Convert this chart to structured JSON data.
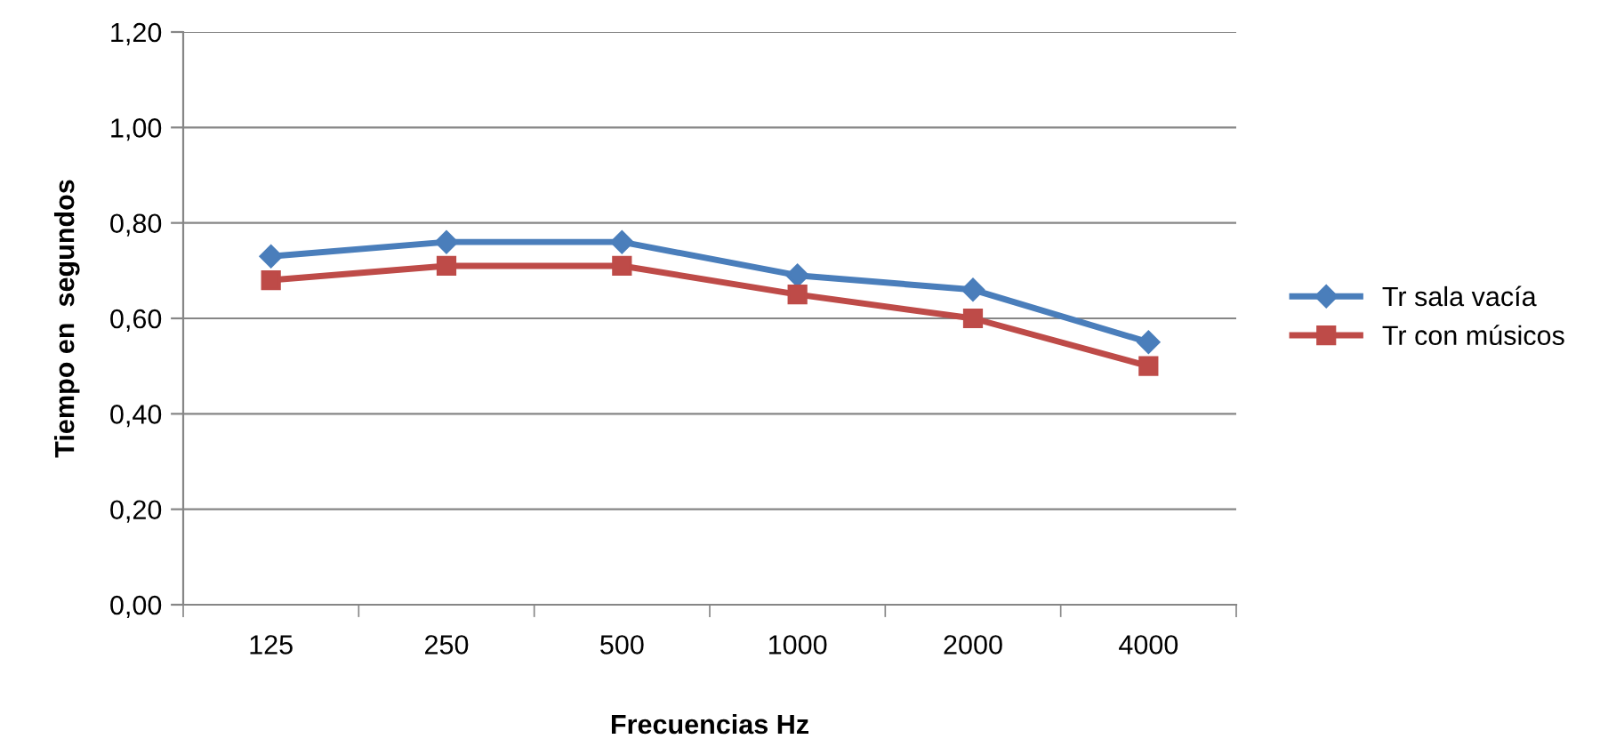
{
  "chart_data": {
    "type": "line",
    "xlabel": "Frecuencias Hz",
    "ylabel": "Tiempo en  segundos",
    "categories": [
      "125",
      "250",
      "500",
      "1000",
      "2000",
      "4000"
    ],
    "series": [
      {
        "name": "Tr sala vacía",
        "color": "#4a7ebb",
        "marker": "diamond",
        "values": [
          0.73,
          0.76,
          0.76,
          0.69,
          0.66,
          0.55
        ]
      },
      {
        "name": "Tr con músicos",
        "color": "#be4b48",
        "marker": "square",
        "values": [
          0.68,
          0.71,
          0.71,
          0.65,
          0.6,
          0.5
        ]
      }
    ],
    "ylim": [
      0,
      1.2
    ],
    "yticks": [
      {
        "value": 0,
        "label": "0,00"
      },
      {
        "value": 0.2,
        "label": "0,20"
      },
      {
        "value": 0.4,
        "label": "0,40"
      },
      {
        "value": 0.6,
        "label": "0,60"
      },
      {
        "value": 0.8,
        "label": "0,80"
      },
      {
        "value": 1.0,
        "label": "1,00"
      },
      {
        "value": 1.2,
        "label": "1,20"
      }
    ],
    "grid": "y",
    "legend": "right"
  }
}
